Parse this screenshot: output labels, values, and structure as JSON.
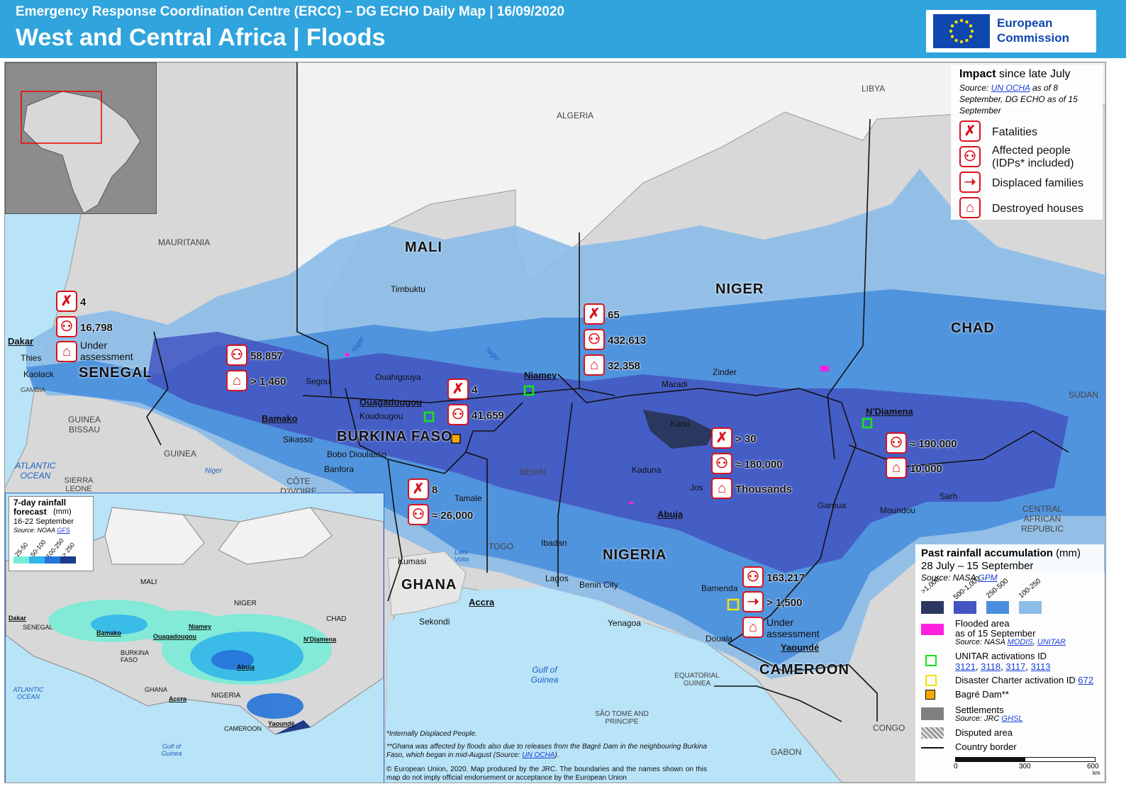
{
  "header": {
    "subtitle": "Emergency Response Coordination Centre (ERCC) – DG ECHO Daily Map | 16/09/2020",
    "title": "West and Central Africa | Floods",
    "logo_line1": "European",
    "logo_line2": "Commission"
  },
  "impact_legend": {
    "title": "Impact",
    "title_suffix": "since late July",
    "source_prefix": "Source:",
    "source_link": "UN OCHA",
    "source_rest": "as of 8 September, DG ECHO as of 15 September",
    "items": [
      "Fatalities",
      "Affected people (IDPs* included)",
      "Displaced families",
      "Destroyed houses"
    ]
  },
  "rain_legend": {
    "title": "Past rainfall accumulation",
    "unit": "(mm)",
    "period": "28 July – 15 September",
    "source": "Source: NASA",
    "source_link": "GPM",
    "classes": [
      ">1,000",
      "500-1,000",
      "250-500",
      "100-250"
    ],
    "colors": [
      "#2a3860",
      "#4355c1",
      "#4a8fdd",
      "#8cbde9"
    ],
    "flooded": "Flooded area",
    "flooded_date": "as of 15 September",
    "flooded_source": "Source: NASA",
    "flooded_links": [
      "MODIS",
      "UNITAR"
    ],
    "unitar": "UNITAR activations ID",
    "unitar_ids": [
      "3121",
      "3118",
      "3117",
      "3113"
    ],
    "charter": "Disaster Charter activation ID",
    "charter_id": "672",
    "dam": "Bagré Dam**",
    "settlements": "Settlements",
    "settlements_source": "Source: JRC",
    "settlements_link": "GHSL",
    "disputed": "Disputed area",
    "border": "Country border",
    "scale": [
      "0",
      "300",
      "600"
    ],
    "scale_unit": "km"
  },
  "forecast_inset": {
    "title": "7-day rainfall forecast",
    "unit": "(mm)",
    "period": "16-22 September",
    "source": "Source: NOAA",
    "source_link": "GFS",
    "classes": [
      "25-50",
      "50-100",
      "100-250",
      "> 250"
    ],
    "colors": [
      "#79ecd7",
      "#33b6ea",
      "#2574d8",
      "#1e3a8a"
    ],
    "labels": [
      "MALI",
      "NIGER",
      "CHAD",
      "SENEGAL",
      "BURKINA FASO",
      "GHANA",
      "NIGERIA",
      "CAMEROON",
      "ATLANTIC OCEAN",
      "Gulf of Guinea"
    ],
    "capitals": [
      "Dakar",
      "Bamako",
      "Niamey",
      "Ouagadougou",
      "N'Djamena",
      "Abuja",
      "Accra",
      "Yaoundé"
    ]
  },
  "impacts": {
    "senegal": {
      "fatalities": "4",
      "affected": "16,798",
      "houses": "Under assessment"
    },
    "mali": {
      "affected": "58,857",
      "houses": "> 1,460"
    },
    "burkina": {
      "fatalities": "4",
      "affected": "41,659"
    },
    "niger": {
      "fatalities": "65",
      "affected": "432,613",
      "houses": "32,358"
    },
    "nigeria": {
      "fatalities": "> 30",
      "affected": "≈ 180,000",
      "houses": "Thousands"
    },
    "chad": {
      "affected": "≈ 190,000",
      "houses": "10,000"
    },
    "ghana": {
      "fatalities": "8",
      "affected": "≈ 26,000"
    },
    "cameroon": {
      "affected": "163,217",
      "displaced": "> 1,500",
      "houses": "Under assessment"
    }
  },
  "countries": {
    "main": [
      "MALI",
      "NIGER",
      "CHAD",
      "SENEGAL",
      "BURKINA FASO",
      "NIGERIA",
      "GHANA",
      "CAMEROON"
    ],
    "other": [
      "ALGERIA",
      "LIBYA",
      "MAURITANIA",
      "GAMBIA",
      "GUINEA BISSAU",
      "GUINEA",
      "SIERRA LEONE",
      "CÔTE D'IVOIRE",
      "TOGO",
      "BENIN",
      "SUDAN",
      "CENTRAL AFRICAN REPUBLIC",
      "EQUATORIAL GUINEA",
      "SÃO TOMÉ AND PRINCIPE",
      "GABON",
      "CONGO"
    ],
    "seas": [
      "ATLANTIC OCEAN",
      "Gulf of Guinea"
    ],
    "rivers": [
      "Niger",
      "Niger",
      "Niger",
      "Lake Volta"
    ]
  },
  "capitals": [
    "Dakar",
    "Bamako",
    "Niamey",
    "Ouagadougou",
    "N'Djamena",
    "Abuja",
    "Accra",
    "Yaoundé"
  ],
  "cities": [
    "Thies",
    "Kaolack",
    "Timbuktu",
    "Segou",
    "Sikasso",
    "Ouahigouya",
    "Koudougou",
    "Bobo Dioulasso",
    "Banfora",
    "Maradi",
    "Zinder",
    "Kano",
    "Kaduna",
    "Jos",
    "Tamale",
    "Kumasi",
    "Sekondi",
    "Ibadan",
    "Lagos",
    "Benin City",
    "Yenagoa",
    "Garoua",
    "Moundou",
    "Sarh",
    "Bamenda",
    "Douala"
  ],
  "notes": {
    "idp": "*Internally Displaced People.",
    "ghana": "**Ghana was affected by floods also due to releases from the Bagré Dam in the neighbouring Burkina Faso, which began in mid-August (Source:",
    "ghana_link": "UN OCHA",
    "ghana_end": ").",
    "copyright": "© European Union, 2020. Map produced by the JRC. The boundaries and the names shown on this map do not imply official endorsement or acceptance by the European Union"
  }
}
